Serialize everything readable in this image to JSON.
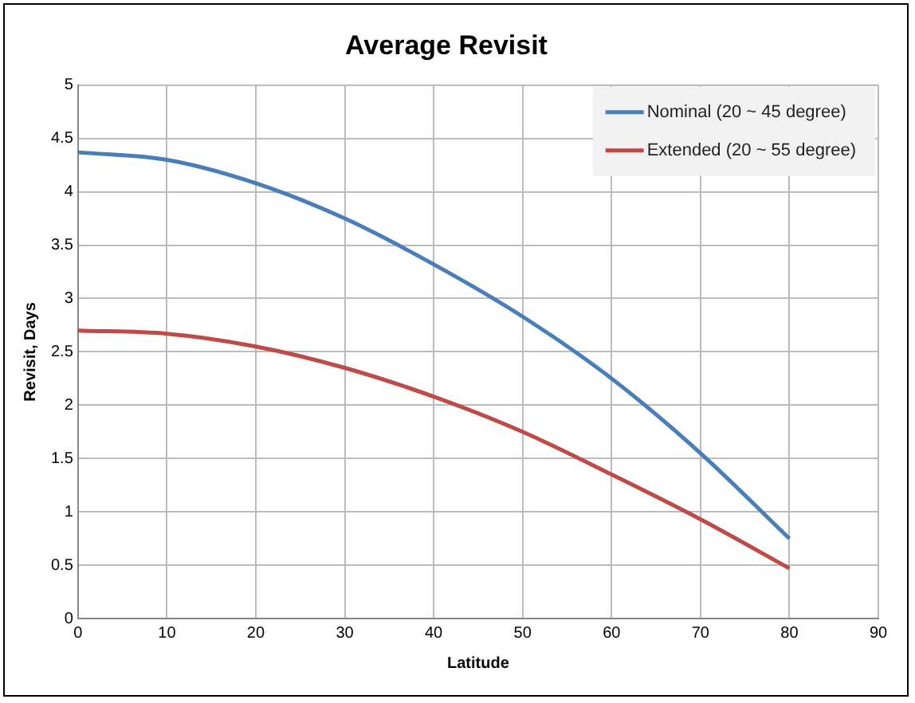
{
  "chart_data": {
    "type": "line",
    "title": "Average Revisit",
    "xlabel": "Latitude",
    "ylabel": "Revisit, Days",
    "x": [
      0,
      10,
      20,
      30,
      40,
      50,
      60,
      70,
      80
    ],
    "series": [
      {
        "name": "Nominal (20 ~ 45 degree)",
        "color": "#4a7ebb",
        "values": [
          4.37,
          4.3,
          4.08,
          3.75,
          3.32,
          2.83,
          2.25,
          1.55,
          0.75
        ]
      },
      {
        "name": "Extended (20 ~ 55 degree)",
        "color": "#be4b48",
        "values": [
          2.7,
          2.67,
          2.55,
          2.35,
          2.08,
          1.75,
          1.35,
          0.93,
          0.47
        ]
      }
    ],
    "xlim": [
      0,
      90
    ],
    "xticks": [
      0,
      10,
      20,
      30,
      40,
      50,
      60,
      70,
      80,
      90
    ],
    "ylim": [
      0,
      5
    ],
    "yticks": [
      0,
      0.5,
      1,
      1.5,
      2,
      2.5,
      3,
      3.5,
      4,
      4.5,
      5
    ],
    "grid": true,
    "legend": "top right",
    "marker": "none",
    "line_style": "solid"
  }
}
